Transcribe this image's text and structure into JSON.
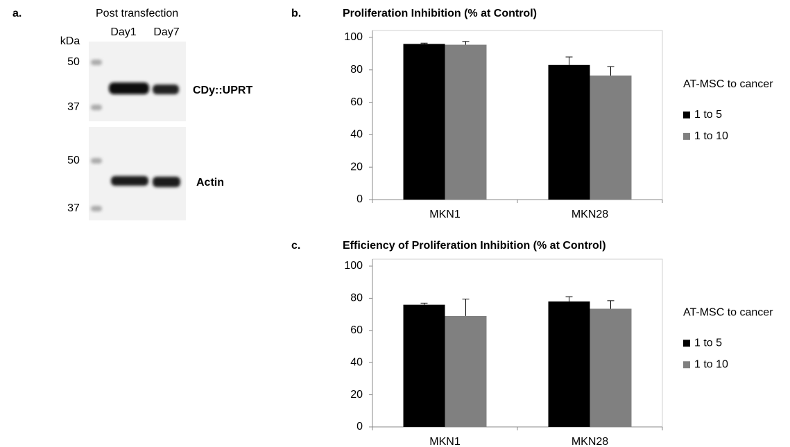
{
  "blot": {
    "panel_label": "a.",
    "title": "Post transfection",
    "lanes": [
      "Day1",
      "Day7"
    ],
    "unit_label": "kDa",
    "panels": [
      {
        "label": "CDy::UPRT",
        "markers": [
          50,
          37
        ]
      },
      {
        "label": "Actin",
        "markers": [
          50,
          37
        ]
      }
    ]
  },
  "chart_data": [
    {
      "type": "bar",
      "panel_label": "b.",
      "title": "Proliferation Inhibition (% at Control)",
      "categories": [
        "MKN1",
        "MKN28"
      ],
      "legend_title": "AT-MSC to cancer",
      "series": [
        {
          "name": "1 to 5",
          "color": "#000000",
          "values": [
            96,
            83
          ],
          "errors": [
            0.5,
            5
          ]
        },
        {
          "name": "1 to 10",
          "color": "#808080",
          "values": [
            95.5,
            76.5
          ],
          "errors": [
            2,
            5.5
          ]
        }
      ],
      "ylim": [
        0,
        100
      ],
      "yticks": [
        0,
        20,
        40,
        60,
        80,
        100
      ],
      "grid": false,
      "legend": "right"
    },
    {
      "type": "bar",
      "panel_label": "c.",
      "title": "Efficiency of Proliferation Inhibition (% at Control)",
      "categories": [
        "MKN1",
        "MKN28"
      ],
      "legend_title": "AT-MSC to cancer",
      "series": [
        {
          "name": "1 to 5",
          "color": "#000000",
          "values": [
            76,
            78
          ],
          "errors": [
            1,
            3
          ]
        },
        {
          "name": "1 to 10",
          "color": "#808080",
          "values": [
            69,
            73.5
          ],
          "errors": [
            10.5,
            5
          ]
        }
      ],
      "ylim": [
        0,
        100
      ],
      "yticks": [
        0,
        20,
        40,
        60,
        80,
        100
      ],
      "grid": false,
      "legend": "right"
    }
  ]
}
